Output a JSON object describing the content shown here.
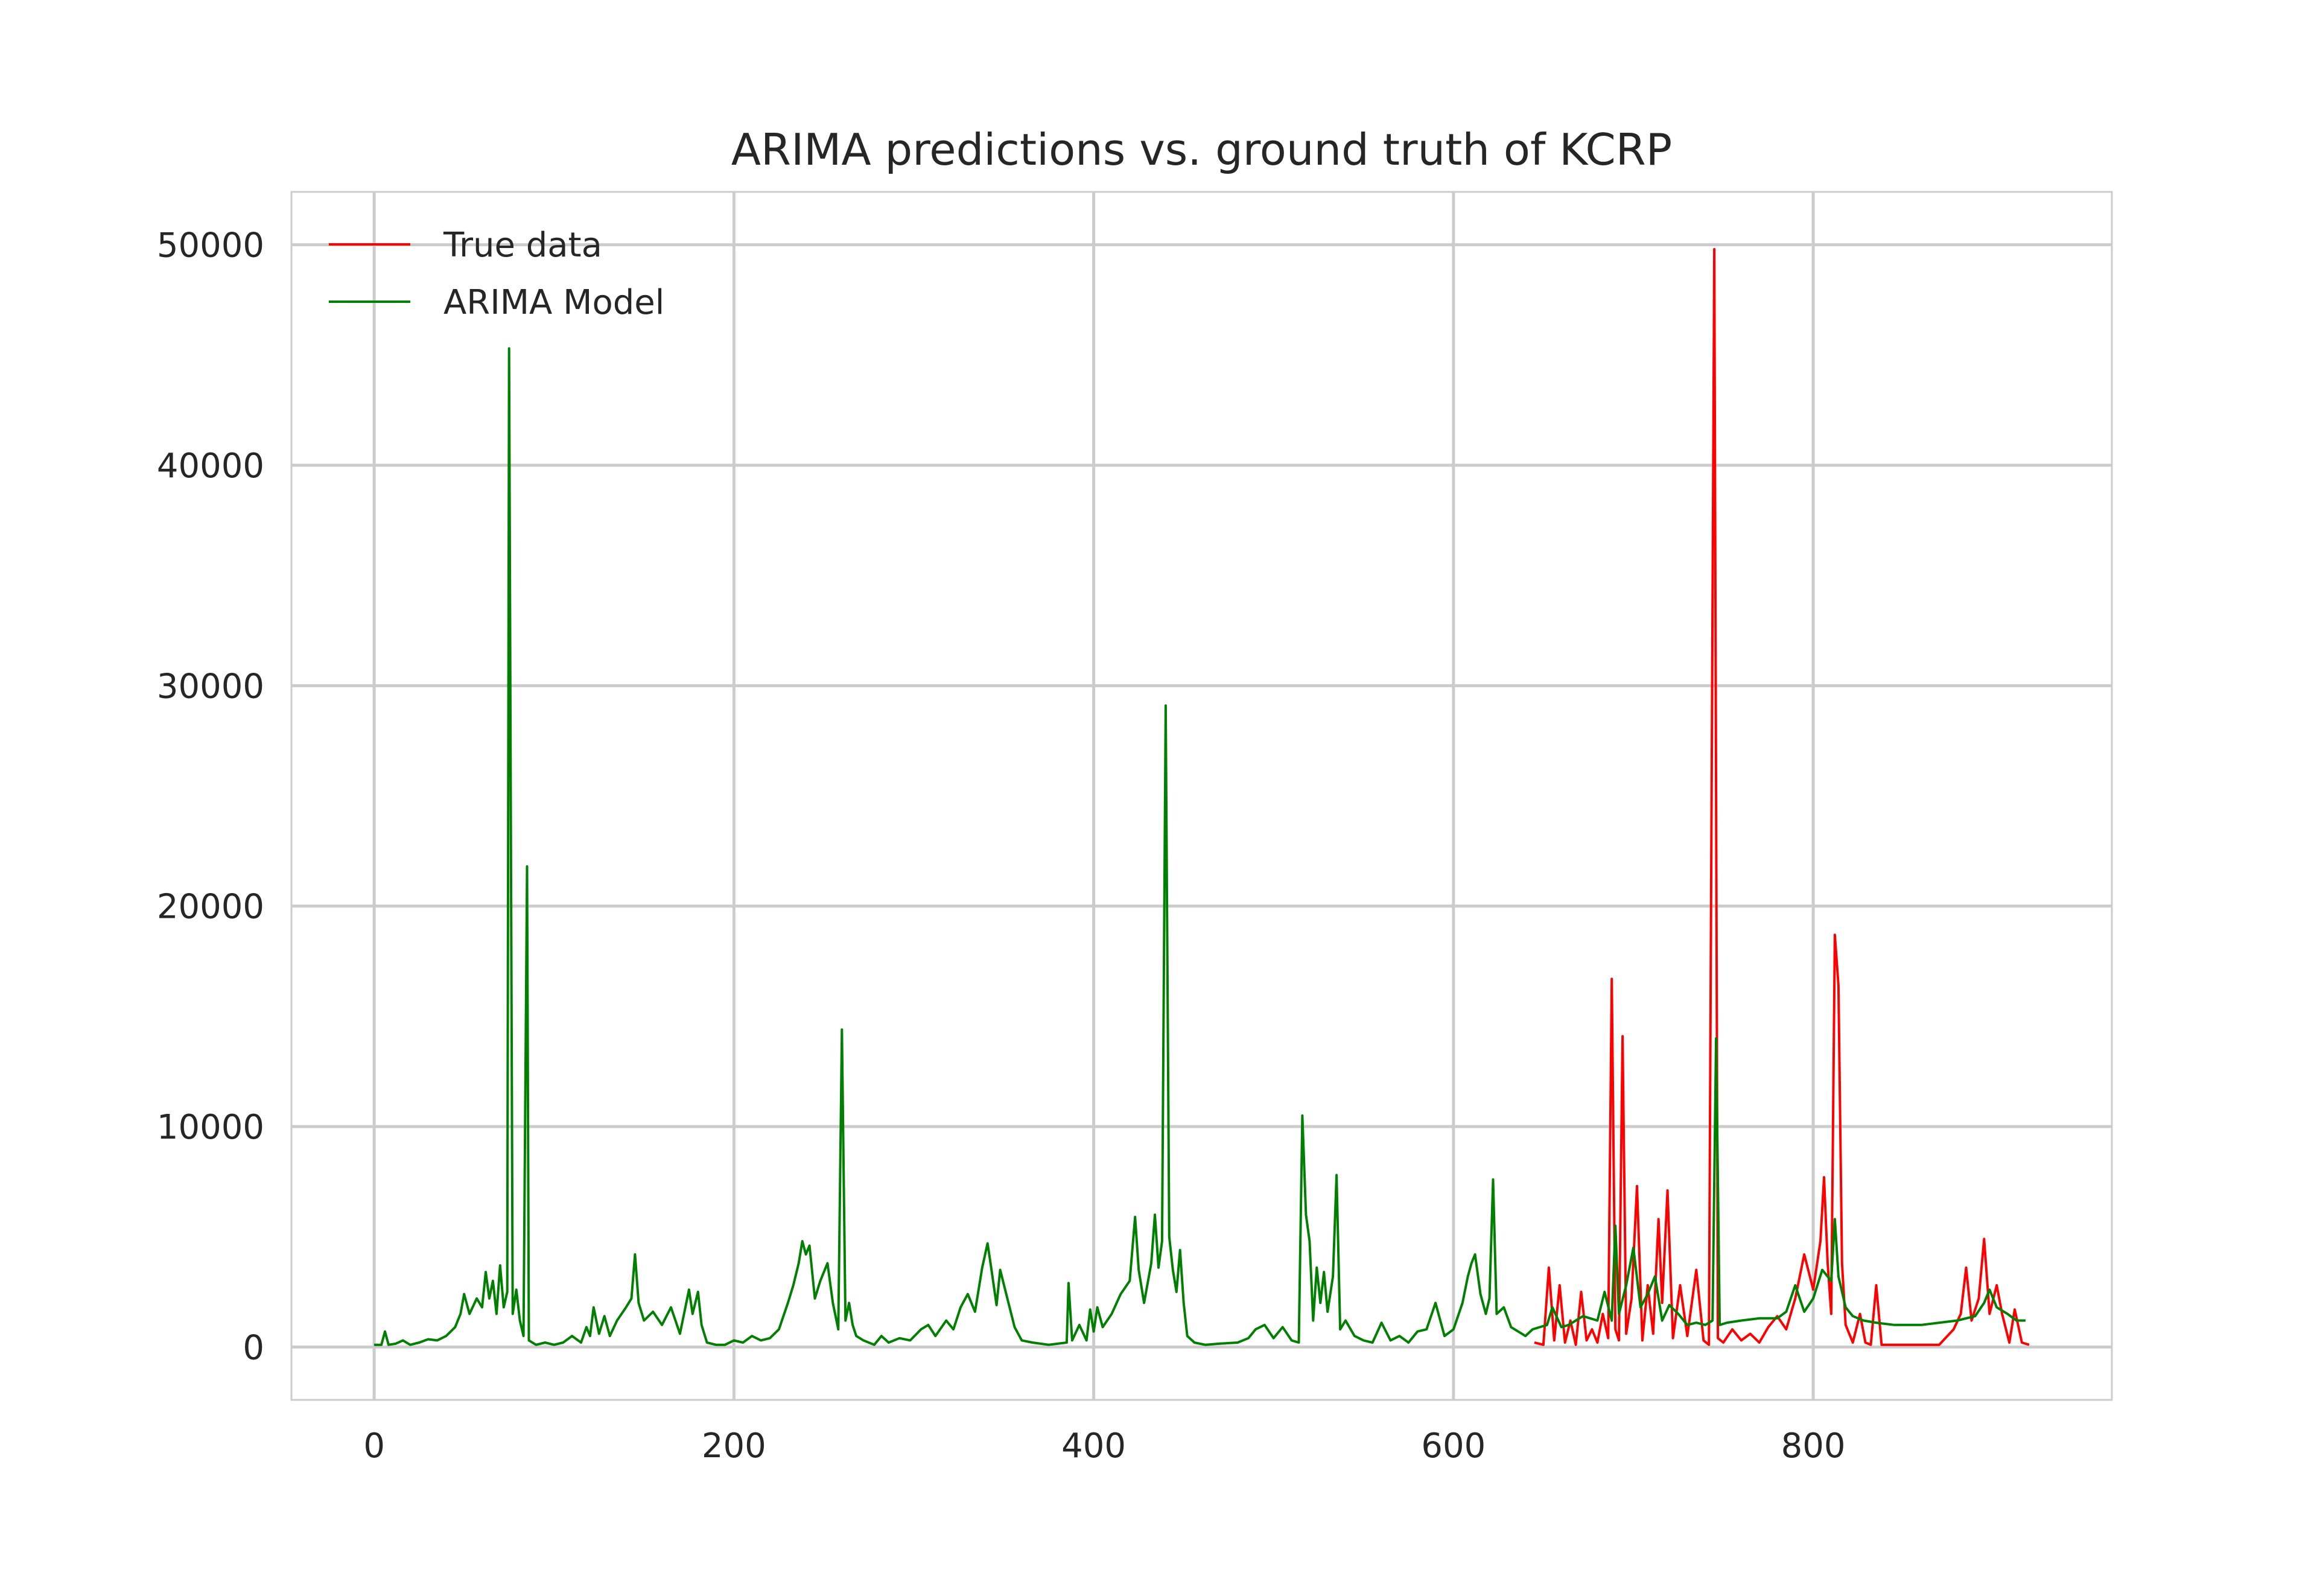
{
  "chart_data": {
    "type": "line",
    "title": "ARIMA predictions vs. ground truth of KCRP",
    "xlabel": "",
    "ylabel": "",
    "xlim": [
      -46,
      966
    ],
    "ylim": [
      -2400,
      52400
    ],
    "x_ticks": [
      0,
      200,
      400,
      600,
      800
    ],
    "x_tick_labels": [
      "0",
      "200",
      "400",
      "600",
      "800"
    ],
    "y_ticks": [
      0,
      10000,
      20000,
      30000,
      40000,
      50000
    ],
    "y_tick_labels": [
      "0",
      "10000",
      "20000",
      "30000",
      "40000",
      "50000"
    ],
    "grid": true,
    "legend": {
      "placement": "top-left"
    },
    "series": [
      {
        "name": "True data",
        "color": "#ff0000",
        "points": [
          [
            645,
            200
          ],
          [
            650,
            100
          ],
          [
            653,
            3600
          ],
          [
            656,
            300
          ],
          [
            659,
            2800
          ],
          [
            662,
            200
          ],
          [
            665,
            1200
          ],
          [
            668,
            100
          ],
          [
            671,
            2500
          ],
          [
            674,
            300
          ],
          [
            677,
            800
          ],
          [
            680,
            200
          ],
          [
            683,
            1500
          ],
          [
            686,
            400
          ],
          [
            688,
            16700
          ],
          [
            690,
            800
          ],
          [
            692,
            300
          ],
          [
            694,
            14100
          ],
          [
            696,
            600
          ],
          [
            699,
            2200
          ],
          [
            702,
            7300
          ],
          [
            705,
            300
          ],
          [
            708,
            2800
          ],
          [
            711,
            600
          ],
          [
            714,
            5800
          ],
          [
            716,
            2000
          ],
          [
            719,
            7100
          ],
          [
            722,
            400
          ],
          [
            726,
            2800
          ],
          [
            730,
            500
          ],
          [
            735,
            3500
          ],
          [
            739,
            300
          ],
          [
            742,
            100
          ],
          [
            745,
            49800
          ],
          [
            747,
            400
          ],
          [
            750,
            200
          ],
          [
            755,
            800
          ],
          [
            760,
            300
          ],
          [
            765,
            600
          ],
          [
            770,
            200
          ],
          [
            775,
            900
          ],
          [
            780,
            1400
          ],
          [
            785,
            800
          ],
          [
            790,
            2200
          ],
          [
            795,
            4200
          ],
          [
            800,
            2600
          ],
          [
            804,
            4800
          ],
          [
            806,
            7700
          ],
          [
            808,
            3800
          ],
          [
            810,
            1500
          ],
          [
            812,
            18700
          ],
          [
            814,
            16400
          ],
          [
            816,
            3800
          ],
          [
            818,
            1000
          ],
          [
            822,
            200
          ],
          [
            826,
            1500
          ],
          [
            829,
            200
          ],
          [
            832,
            100
          ],
          [
            835,
            2800
          ],
          [
            838,
            100
          ],
          [
            842,
            100
          ],
          [
            850,
            100
          ],
          [
            860,
            100
          ],
          [
            870,
            100
          ],
          [
            878,
            800
          ],
          [
            882,
            1500
          ],
          [
            885,
            3600
          ],
          [
            888,
            1200
          ],
          [
            892,
            2200
          ],
          [
            895,
            4900
          ],
          [
            898,
            1500
          ],
          [
            902,
            2800
          ],
          [
            905,
            1500
          ],
          [
            909,
            200
          ],
          [
            912,
            1700
          ],
          [
            916,
            200
          ],
          [
            920,
            100
          ]
        ]
      },
      {
        "name": "ARIMA Model",
        "color": "#007f00",
        "points": [
          [
            0,
            100
          ],
          [
            4,
            100
          ],
          [
            6,
            700
          ],
          [
            8,
            100
          ],
          [
            12,
            150
          ],
          [
            16,
            300
          ],
          [
            20,
            100
          ],
          [
            25,
            200
          ],
          [
            30,
            350
          ],
          [
            35,
            300
          ],
          [
            40,
            500
          ],
          [
            45,
            900
          ],
          [
            48,
            1500
          ],
          [
            50,
            2400
          ],
          [
            53,
            1500
          ],
          [
            57,
            2200
          ],
          [
            60,
            1800
          ],
          [
            62,
            3400
          ],
          [
            64,
            2200
          ],
          [
            66,
            3000
          ],
          [
            68,
            1500
          ],
          [
            70,
            3700
          ],
          [
            72,
            1800
          ],
          [
            74,
            2500
          ],
          [
            75,
            45300
          ],
          [
            77,
            1500
          ],
          [
            79,
            2600
          ],
          [
            81,
            1200
          ],
          [
            83,
            500
          ],
          [
            85,
            21800
          ],
          [
            86,
            300
          ],
          [
            90,
            100
          ],
          [
            95,
            200
          ],
          [
            100,
            100
          ],
          [
            105,
            200
          ],
          [
            110,
            500
          ],
          [
            115,
            200
          ],
          [
            118,
            900
          ],
          [
            120,
            500
          ],
          [
            122,
            1800
          ],
          [
            125,
            600
          ],
          [
            128,
            1400
          ],
          [
            131,
            500
          ],
          [
            135,
            1200
          ],
          [
            140,
            1800
          ],
          [
            143,
            2200
          ],
          [
            145,
            4200
          ],
          [
            147,
            2000
          ],
          [
            150,
            1200
          ],
          [
            155,
            1600
          ],
          [
            160,
            1000
          ],
          [
            165,
            1800
          ],
          [
            170,
            600
          ],
          [
            175,
            2600
          ],
          [
            177,
            1500
          ],
          [
            180,
            2500
          ],
          [
            182,
            1000
          ],
          [
            185,
            200
          ],
          [
            190,
            100
          ],
          [
            195,
            100
          ],
          [
            200,
            300
          ],
          [
            205,
            200
          ],
          [
            210,
            500
          ],
          [
            215,
            300
          ],
          [
            220,
            400
          ],
          [
            225,
            800
          ],
          [
            230,
            2000
          ],
          [
            233,
            2800
          ],
          [
            236,
            3800
          ],
          [
            238,
            4800
          ],
          [
            240,
            4200
          ],
          [
            242,
            4600
          ],
          [
            245,
            2200
          ],
          [
            248,
            3000
          ],
          [
            252,
            3800
          ],
          [
            255,
            2000
          ],
          [
            258,
            800
          ],
          [
            260,
            14400
          ],
          [
            262,
            1200
          ],
          [
            264,
            2000
          ],
          [
            266,
            1000
          ],
          [
            268,
            500
          ],
          [
            272,
            300
          ],
          [
            278,
            100
          ],
          [
            282,
            500
          ],
          [
            286,
            200
          ],
          [
            292,
            400
          ],
          [
            298,
            300
          ],
          [
            304,
            800
          ],
          [
            308,
            1000
          ],
          [
            312,
            500
          ],
          [
            318,
            1200
          ],
          [
            322,
            800
          ],
          [
            326,
            1800
          ],
          [
            330,
            2400
          ],
          [
            334,
            1600
          ],
          [
            338,
            3600
          ],
          [
            341,
            4700
          ],
          [
            343,
            3600
          ],
          [
            346,
            1900
          ],
          [
            348,
            3500
          ],
          [
            352,
            2200
          ],
          [
            356,
            900
          ],
          [
            360,
            300
          ],
          [
            366,
            200
          ],
          [
            375,
            100
          ],
          [
            385,
            200
          ],
          [
            386,
            2900
          ],
          [
            388,
            300
          ],
          [
            392,
            1000
          ],
          [
            396,
            300
          ],
          [
            398,
            1700
          ],
          [
            400,
            700
          ],
          [
            402,
            1800
          ],
          [
            405,
            900
          ],
          [
            410,
            1500
          ],
          [
            415,
            2400
          ],
          [
            420,
            3000
          ],
          [
            423,
            5900
          ],
          [
            425,
            3500
          ],
          [
            428,
            2000
          ],
          [
            432,
            3800
          ],
          [
            434,
            6000
          ],
          [
            436,
            3600
          ],
          [
            438,
            4800
          ],
          [
            440,
            29100
          ],
          [
            442,
            5000
          ],
          [
            444,
            3500
          ],
          [
            446,
            2500
          ],
          [
            448,
            4400
          ],
          [
            450,
            2000
          ],
          [
            452,
            500
          ],
          [
            456,
            200
          ],
          [
            462,
            100
          ],
          [
            470,
            150
          ],
          [
            480,
            200
          ],
          [
            486,
            400
          ],
          [
            490,
            800
          ],
          [
            495,
            1000
          ],
          [
            500,
            400
          ],
          [
            505,
            900
          ],
          [
            510,
            300
          ],
          [
            514,
            200
          ],
          [
            516,
            10500
          ],
          [
            518,
            6000
          ],
          [
            520,
            4800
          ],
          [
            522,
            1200
          ],
          [
            524,
            3600
          ],
          [
            526,
            2000
          ],
          [
            528,
            3400
          ],
          [
            530,
            1600
          ],
          [
            533,
            3200
          ],
          [
            535,
            7800
          ],
          [
            537,
            800
          ],
          [
            540,
            1200
          ],
          [
            545,
            500
          ],
          [
            550,
            300
          ],
          [
            555,
            200
          ],
          [
            560,
            1100
          ],
          [
            565,
            300
          ],
          [
            570,
            500
          ],
          [
            575,
            200
          ],
          [
            580,
            700
          ],
          [
            585,
            800
          ],
          [
            590,
            2000
          ],
          [
            595,
            500
          ],
          [
            600,
            800
          ],
          [
            605,
            2000
          ],
          [
            608,
            3200
          ],
          [
            610,
            3800
          ],
          [
            612,
            4200
          ],
          [
            615,
            2400
          ],
          [
            618,
            1500
          ],
          [
            620,
            2200
          ],
          [
            622,
            7600
          ],
          [
            624,
            1500
          ],
          [
            628,
            1800
          ],
          [
            632,
            900
          ],
          [
            636,
            700
          ],
          [
            640,
            500
          ],
          [
            644,
            800
          ],
          [
            648,
            900
          ],
          [
            652,
            1000
          ],
          [
            655,
            1800
          ],
          [
            660,
            900
          ],
          [
            664,
            1000
          ],
          [
            668,
            1200
          ],
          [
            672,
            1400
          ],
          [
            676,
            1300
          ],
          [
            680,
            1200
          ],
          [
            684,
            2500
          ],
          [
            688,
            1200
          ],
          [
            690,
            5500
          ],
          [
            692,
            1500
          ],
          [
            696,
            2800
          ],
          [
            700,
            4500
          ],
          [
            704,
            1800
          ],
          [
            708,
            2400
          ],
          [
            712,
            3200
          ],
          [
            716,
            1200
          ],
          [
            720,
            1900
          ],
          [
            725,
            1500
          ],
          [
            730,
            1000
          ],
          [
            735,
            1100
          ],
          [
            740,
            1000
          ],
          [
            744,
            1200
          ],
          [
            746,
            14000
          ],
          [
            748,
            1000
          ],
          [
            752,
            1100
          ],
          [
            760,
            1200
          ],
          [
            770,
            1300
          ],
          [
            780,
            1300
          ],
          [
            785,
            1600
          ],
          [
            790,
            2800
          ],
          [
            795,
            1600
          ],
          [
            800,
            2200
          ],
          [
            805,
            3500
          ],
          [
            810,
            3000
          ],
          [
            812,
            5800
          ],
          [
            814,
            3200
          ],
          [
            818,
            1800
          ],
          [
            822,
            1400
          ],
          [
            828,
            1200
          ],
          [
            835,
            1100
          ],
          [
            845,
            1000
          ],
          [
            860,
            1000
          ],
          [
            870,
            1100
          ],
          [
            880,
            1200
          ],
          [
            890,
            1400
          ],
          [
            895,
            2000
          ],
          [
            898,
            2600
          ],
          [
            902,
            1800
          ],
          [
            908,
            1500
          ],
          [
            913,
            1200
          ],
          [
            918,
            1200
          ]
        ]
      }
    ]
  }
}
